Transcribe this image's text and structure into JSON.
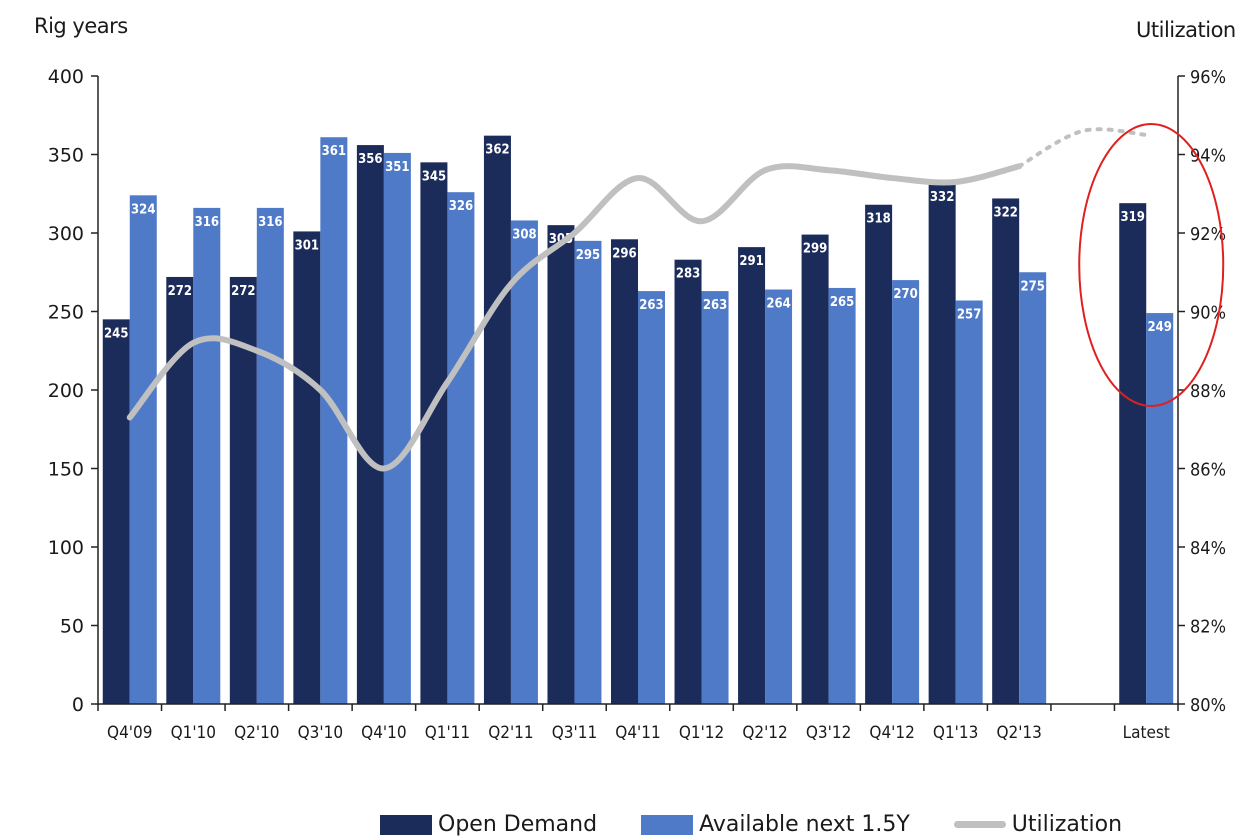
{
  "chart_data": {
    "type": "bar",
    "ylabel_left": "Rig years",
    "ylabel_right": "Utilization",
    "ylim_left": [
      0,
      400
    ],
    "yticks_left": [
      0,
      50,
      100,
      150,
      200,
      250,
      300,
      350,
      400
    ],
    "ylim_right": [
      80,
      96
    ],
    "yticks_right": [
      "80%",
      "82%",
      "84%",
      "86%",
      "88%",
      "90%",
      "92%",
      "94%",
      "96%"
    ],
    "categories": [
      "Q4'09",
      "Q1'10",
      "Q2'10",
      "Q3'10",
      "Q4'10",
      "Q1'11",
      "Q2'11",
      "Q3'11",
      "Q4'11",
      "Q1'12",
      "Q2'12",
      "Q3'12",
      "Q4'12",
      "Q1'13",
      "Q2'13",
      "",
      "Latest"
    ],
    "series": [
      {
        "name": "Open Demand",
        "color": "#1b2b5a",
        "values": [
          245,
          272,
          272,
          301,
          356,
          345,
          362,
          305,
          296,
          283,
          291,
          299,
          318,
          332,
          322,
          null,
          319
        ]
      },
      {
        "name": "Available next 1.5Y",
        "color": "#4f7ac7",
        "values": [
          324,
          316,
          316,
          361,
          351,
          326,
          308,
          295,
          263,
          263,
          264,
          265,
          270,
          257,
          275,
          null,
          249
        ]
      }
    ],
    "line_series": {
      "name": "Utilization",
      "color": "#c0c0c0",
      "axis": "right",
      "values": [
        87.3,
        89.2,
        89.0,
        88.0,
        86.0,
        88.2,
        90.7,
        92.0,
        93.4,
        92.3,
        93.6,
        93.6,
        93.4,
        93.3,
        93.7,
        94.6,
        94.5
      ],
      "dotted_from_index": 14
    },
    "legend_position": "bottom-center",
    "highlight": {
      "category": "Latest",
      "shape": "ellipse",
      "color": "#e02020"
    }
  },
  "text": {
    "left_axis_title": "Rig years",
    "right_axis_title": "Utilization"
  },
  "legend": {
    "open_demand": "Open Demand",
    "available": "Available next 1.5Y",
    "utilization": "Utilization"
  }
}
